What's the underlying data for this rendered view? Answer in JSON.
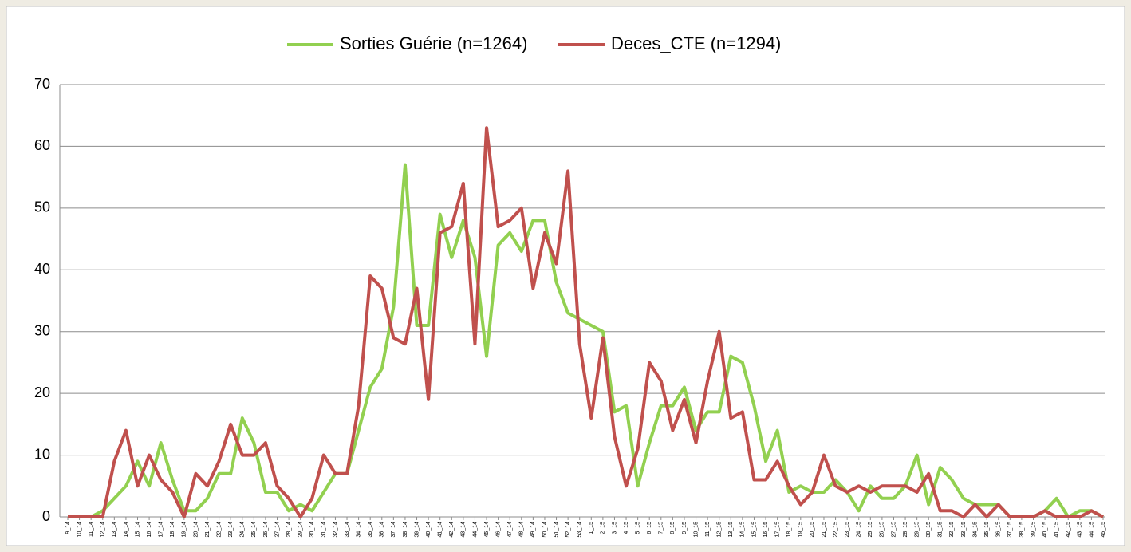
{
  "chart_data": {
    "type": "line",
    "categories": [
      "9_14",
      "10_14",
      "11_14",
      "12_14",
      "13_14",
      "14_14",
      "15_14",
      "16_14",
      "17_14",
      "18_14",
      "19_14",
      "20_14",
      "21_14",
      "22_14",
      "23_14",
      "24_14",
      "25_14",
      "26_14",
      "27_14",
      "28_14",
      "29_14",
      "30_14",
      "31_14",
      "32_14",
      "33_14",
      "34_14",
      "35_14",
      "36_14",
      "37_14",
      "38_14",
      "39_14",
      "40_14",
      "41_14",
      "42_14",
      "43_14",
      "44_14",
      "45_14",
      "46_14",
      "47_14",
      "48_14",
      "49_14",
      "50_14",
      "51_14",
      "52_14",
      "53_14",
      "1_15",
      "2_15",
      "3_15",
      "4_15",
      "5_15",
      "6_15",
      "7_15",
      "8_15",
      "9_15",
      "10_15",
      "11_15",
      "12_15",
      "13_15",
      "14_15",
      "15_15",
      "16_15",
      "17_15",
      "18_15",
      "19_15",
      "20_15",
      "21_15",
      "22_15",
      "23_15",
      "24_15",
      "25_15",
      "26_15",
      "27_15",
      "28_15",
      "29_15",
      "30_15",
      "31_15",
      "32_15",
      "33_15",
      "34_15",
      "35_15",
      "36_15",
      "37_15",
      "38_15",
      "39_15",
      "40_15",
      "41_15",
      "42_15",
      "43_15",
      "44_15",
      "45_15"
    ],
    "series": [
      {
        "name": "Sorties Guérie (n=1264)",
        "color": "#92d050",
        "values": [
          0,
          0,
          0,
          1,
          3,
          5,
          9,
          5,
          12,
          6,
          1,
          1,
          3,
          7,
          7,
          16,
          12,
          4,
          4,
          1,
          2,
          1,
          4,
          7,
          7,
          14,
          21,
          24,
          34,
          57,
          31,
          31,
          49,
          42,
          48,
          42,
          26,
          44,
          46,
          43,
          48,
          48,
          38,
          33,
          32,
          31,
          30,
          17,
          18,
          5,
          12,
          18,
          18,
          21,
          14,
          17,
          17,
          26,
          25,
          18,
          9,
          14,
          4,
          5,
          4,
          4,
          6,
          4,
          1,
          5,
          3,
          3,
          5,
          10,
          2,
          8,
          6,
          3,
          2,
          2,
          2,
          0,
          0,
          0,
          1,
          3,
          0,
          1,
          1,
          0
        ]
      },
      {
        "name": "Deces_CTE (n=1294)",
        "color": "#c0504d",
        "values": [
          0,
          0,
          0,
          0,
          9,
          14,
          5,
          10,
          6,
          4,
          0,
          7,
          5,
          9,
          15,
          10,
          10,
          12,
          5,
          3,
          0,
          3,
          10,
          7,
          7,
          18,
          39,
          37,
          29,
          28,
          37,
          19,
          46,
          47,
          54,
          28,
          63,
          47,
          48,
          50,
          37,
          46,
          41,
          56,
          28,
          16,
          29,
          13,
          5,
          11,
          25,
          22,
          14,
          19,
          12,
          22,
          30,
          16,
          17,
          6,
          6,
          9,
          5,
          2,
          4,
          10,
          5,
          4,
          5,
          4,
          5,
          5,
          5,
          4,
          7,
          1,
          1,
          0,
          2,
          0,
          2,
          0,
          0,
          0,
          1,
          0,
          0,
          0,
          1,
          0
        ]
      }
    ],
    "ylim": [
      0,
      70
    ],
    "yticks": [
      0,
      10,
      20,
      30,
      40,
      50,
      60,
      70
    ],
    "grid": true,
    "legend": "top"
  }
}
